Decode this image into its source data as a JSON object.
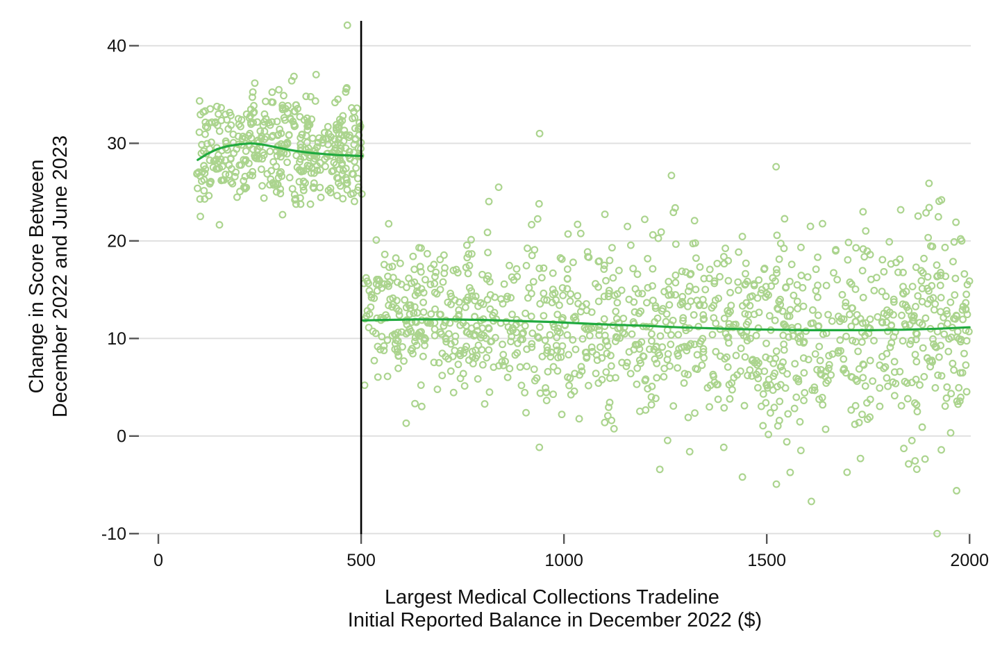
{
  "chart_data": {
    "type": "scatter",
    "title": "",
    "xlabel": "Largest Medical Collections Tradeline Initial Reported Balance in December 2022 ($)",
    "xlabel_lines": [
      "Largest Medical Collections Tradeline",
      "Initial Reported Balance in December 2022 ($)"
    ],
    "ylabel": "Change in Score Between December 2022 and June 2023",
    "ylabel_lines": [
      "Change in Score Between",
      "December 2022 and June 2023"
    ],
    "xlim": [
      -48,
      2003
    ],
    "ylim": [
      -10.05,
      42.55
    ],
    "xticks": [
      0,
      500,
      1000,
      1500,
      2000
    ],
    "xtick_labels": [
      "0",
      "500",
      "1000",
      "1500",
      "2000"
    ],
    "yticks": [
      -10,
      0,
      10,
      20,
      30,
      40
    ],
    "ytick_labels": [
      "-10",
      "0",
      "10",
      "20",
      "30",
      "40"
    ],
    "grid": "horizontal",
    "legend": "none",
    "cutoff_line_x": 500,
    "seed": 42,
    "scatter_clusters": [
      {
        "name": "below-cutoff",
        "n": 430,
        "x_range": [
          95,
          503
        ],
        "sd_range": [
          2.7,
          2.7
        ],
        "y_clamp": [
          20.9,
          38.4
        ],
        "mean_source": "below-cutoff-fit"
      },
      {
        "name": "above-cutoff",
        "n": 1230,
        "x_range": [
          505,
          2000
        ],
        "sd_range": [
          3.6,
          5.7
        ],
        "y_clamp": [
          -7.6,
          24.4
        ],
        "mean_source": "above-cutoff-fit"
      }
    ],
    "outlier_points": [
      [
        466,
        42.1
      ],
      [
        940,
        31.0
      ],
      [
        1265,
        26.7
      ],
      [
        1523,
        27.6
      ],
      [
        1900,
        25.9
      ],
      [
        839,
        25.5
      ],
      [
        1310,
        -1.6
      ],
      [
        1440,
        -4.2
      ],
      [
        1610,
        -6.7
      ],
      [
        1731,
        -2.3
      ],
      [
        1870,
        -3.4
      ],
      [
        1920,
        -10.0
      ],
      [
        1968,
        -5.6
      ]
    ],
    "trend_series": [
      {
        "name": "below-cutoff-fit",
        "points": [
          [
            97,
            28.3
          ],
          [
            120,
            28.9
          ],
          [
            145,
            29.4
          ],
          [
            170,
            29.7
          ],
          [
            200,
            29.9
          ],
          [
            230,
            30.0
          ],
          [
            260,
            29.85
          ],
          [
            290,
            29.6
          ],
          [
            320,
            29.35
          ],
          [
            350,
            29.15
          ],
          [
            380,
            29.0
          ],
          [
            410,
            28.9
          ],
          [
            440,
            28.8
          ],
          [
            470,
            28.75
          ],
          [
            503,
            28.7
          ]
        ]
      },
      {
        "name": "above-cutoff-fit",
        "points": [
          [
            505,
            11.85
          ],
          [
            560,
            11.9
          ],
          [
            640,
            11.95
          ],
          [
            720,
            11.95
          ],
          [
            800,
            11.9
          ],
          [
            880,
            11.8
          ],
          [
            960,
            11.7
          ],
          [
            1040,
            11.55
          ],
          [
            1120,
            11.4
          ],
          [
            1200,
            11.3
          ],
          [
            1280,
            11.15
          ],
          [
            1360,
            11.05
          ],
          [
            1440,
            10.95
          ],
          [
            1520,
            10.9
          ],
          [
            1600,
            10.85
          ],
          [
            1680,
            10.85
          ],
          [
            1760,
            10.85
          ],
          [
            1840,
            10.9
          ],
          [
            1920,
            11.0
          ],
          [
            2000,
            11.15
          ]
        ]
      }
    ],
    "colors": {
      "point": "#abd48e",
      "trend": "#20aa3f",
      "cutoff": "#000000",
      "grid": "#e0e0e0",
      "tick": "#565656",
      "text": "#111111",
      "background": "#ffffff"
    }
  }
}
